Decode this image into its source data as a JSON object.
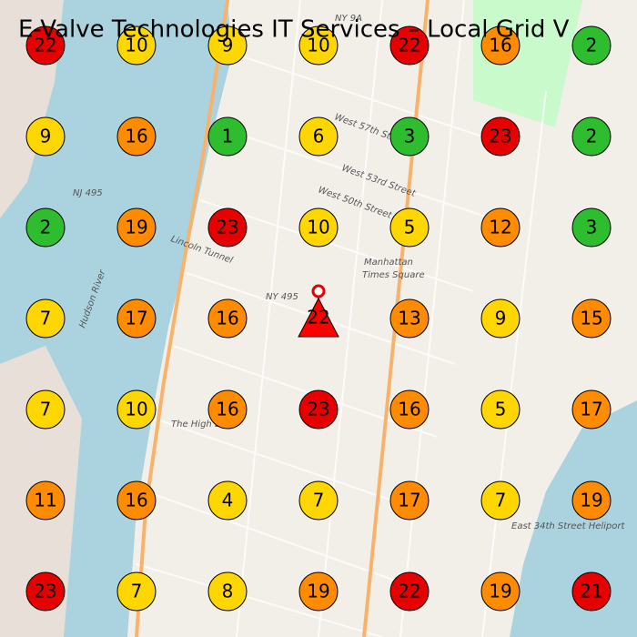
{
  "header": {
    "title": "E-Valve Technologies IT Services – Local Grid V"
  },
  "map_labels": [
    "Manhattan",
    "Times Square",
    "NY 495",
    "Lincoln Tunnel",
    "The High Line",
    "West 57th Street",
    "West 53rd Street",
    "West 50th Street",
    "Hudson River",
    "NJ 495",
    "NY 9A",
    "East 34th Street Heliport"
  ],
  "grid": {
    "rows": [
      [
        {
          "rank": 22,
          "color": "#e60000"
        },
        {
          "rank": 10,
          "color": "#ffd700"
        },
        {
          "rank": 9,
          "color": "#ffd700"
        },
        {
          "rank": 10,
          "color": "#ffd700"
        },
        {
          "rank": 22,
          "color": "#e60000"
        },
        {
          "rank": 16,
          "color": "#ff8c00"
        },
        {
          "rank": 2,
          "color": "#2ebd2e"
        }
      ],
      [
        {
          "rank": 9,
          "color": "#ffd700"
        },
        {
          "rank": 16,
          "color": "#ff8c00"
        },
        {
          "rank": 1,
          "color": "#2ebd2e"
        },
        {
          "rank": 6,
          "color": "#ffd700"
        },
        {
          "rank": 3,
          "color": "#2ebd2e"
        },
        {
          "rank": 23,
          "color": "#e60000"
        },
        {
          "rank": 2,
          "color": "#2ebd2e"
        }
      ],
      [
        {
          "rank": 2,
          "color": "#2ebd2e"
        },
        {
          "rank": 19,
          "color": "#ff8c00"
        },
        {
          "rank": 23,
          "color": "#e60000"
        },
        {
          "rank": 10,
          "color": "#ffd700"
        },
        {
          "rank": 5,
          "color": "#ffd700"
        },
        {
          "rank": 12,
          "color": "#ff8c00"
        },
        {
          "rank": 3,
          "color": "#2ebd2e"
        }
      ],
      [
        {
          "rank": 7,
          "color": "#ffd700"
        },
        {
          "rank": 17,
          "color": "#ff8c00"
        },
        {
          "rank": 16,
          "color": "#ff8c00"
        },
        null,
        {
          "rank": 13,
          "color": "#ff8c00"
        },
        {
          "rank": 9,
          "color": "#ffd700"
        },
        {
          "rank": 15,
          "color": "#ff8c00"
        }
      ],
      [
        {
          "rank": 7,
          "color": "#ffd700"
        },
        {
          "rank": 10,
          "color": "#ffd700"
        },
        {
          "rank": 16,
          "color": "#ff8c00"
        },
        {
          "rank": 23,
          "color": "#e60000"
        },
        {
          "rank": 16,
          "color": "#ff8c00"
        },
        {
          "rank": 5,
          "color": "#ffd700"
        },
        {
          "rank": 17,
          "color": "#ff8c00"
        }
      ],
      [
        {
          "rank": 11,
          "color": "#ff8c00"
        },
        {
          "rank": 16,
          "color": "#ff8c00"
        },
        {
          "rank": 4,
          "color": "#ffd700"
        },
        {
          "rank": 7,
          "color": "#ffd700"
        },
        {
          "rank": 17,
          "color": "#ff8c00"
        },
        {
          "rank": 7,
          "color": "#ffd700"
        },
        {
          "rank": 19,
          "color": "#ff8c00"
        }
      ],
      [
        {
          "rank": 23,
          "color": "#e60000"
        },
        {
          "rank": 7,
          "color": "#ffd700"
        },
        {
          "rank": 8,
          "color": "#ffd700"
        },
        {
          "rank": 19,
          "color": "#ff8c00"
        },
        {
          "rank": 22,
          "color": "#e60000"
        },
        {
          "rank": 19,
          "color": "#ff8c00"
        },
        {
          "rank": 21,
          "color": "#e60000"
        }
      ]
    ]
  },
  "center": {
    "rank": 22,
    "color": "#ff0000"
  }
}
